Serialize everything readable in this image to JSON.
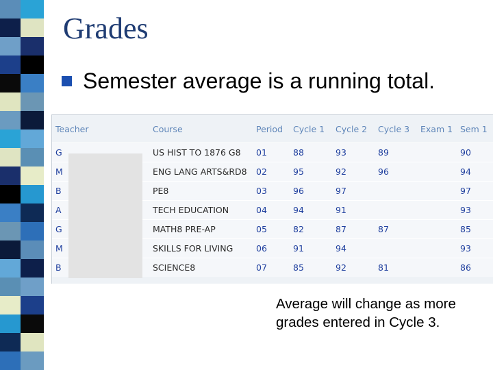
{
  "slide": {
    "title": "Grades",
    "bullet": "Semester average is a running total.",
    "note": "Average will change as more grades entered in Cycle 3."
  },
  "grades_table": {
    "columns": [
      "Teacher",
      "Course",
      "Period",
      "Cycle 1",
      "Cycle 2",
      "Cycle 3",
      "Exam 1",
      "Sem 1"
    ],
    "rows": [
      {
        "teacher": "G",
        "course": "US HIST TO 1876 G8",
        "period": "01",
        "cycle1": "88",
        "cycle2": "93",
        "cycle3": "89",
        "exam1": "",
        "sem1": "90"
      },
      {
        "teacher": "M",
        "course": "ENG LANG ARTS&RD8",
        "period": "02",
        "cycle1": "95",
        "cycle2": "92",
        "cycle3": "96",
        "exam1": "",
        "sem1": "94"
      },
      {
        "teacher": "B",
        "course": "PE8",
        "period": "03",
        "cycle1": "96",
        "cycle2": "97",
        "cycle3": "",
        "exam1": "",
        "sem1": "97"
      },
      {
        "teacher": "A",
        "course": "TECH EDUCATION",
        "period": "04",
        "cycle1": "94",
        "cycle2": "91",
        "cycle3": "",
        "exam1": "",
        "sem1": "93"
      },
      {
        "teacher": "G",
        "course": "MATH8 PRE-AP",
        "period": "05",
        "cycle1": "82",
        "cycle2": "87",
        "cycle3": "87",
        "exam1": "",
        "sem1": "85"
      },
      {
        "teacher": "M",
        "course": "SKILLS FOR LIVING",
        "period": "06",
        "cycle1": "91",
        "cycle2": "94",
        "cycle3": "",
        "exam1": "",
        "sem1": "93"
      },
      {
        "teacher": "B",
        "course": "SCIENCE8",
        "period": "07",
        "cycle1": "85",
        "cycle2": "92",
        "cycle3": "81",
        "exam1": "",
        "sem1": "86"
      }
    ]
  },
  "stripe_colors": [
    "#5b8db8",
    "#0d1f4a",
    "#6f9fc8",
    "#1c3f8a",
    "#0a0a0a",
    "#e0e5c0",
    "#6b9bc0",
    "#2aa3d6",
    "#dfe4c2",
    "#1a2f6b",
    "#000000",
    "#3a7fc5",
    "#6b96b4",
    "#0b1a3a",
    "#62a8d8",
    "#5a8fb4",
    "#e7ecc8",
    "#2698d0",
    "#0e2a55",
    "#2d6fb8"
  ]
}
